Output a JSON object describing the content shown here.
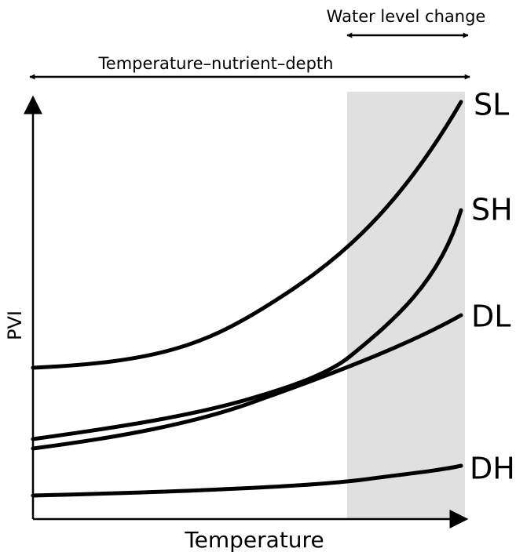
{
  "annotations": {
    "water_level": "Water level change",
    "gradient": "Temperature–nutrient–depth"
  },
  "axes": {
    "x": "Temperature",
    "y": "PVI"
  },
  "curves": [
    {
      "label": "SL"
    },
    {
      "label": "SH"
    },
    {
      "label": "DL"
    },
    {
      "label": "DH"
    }
  ]
}
